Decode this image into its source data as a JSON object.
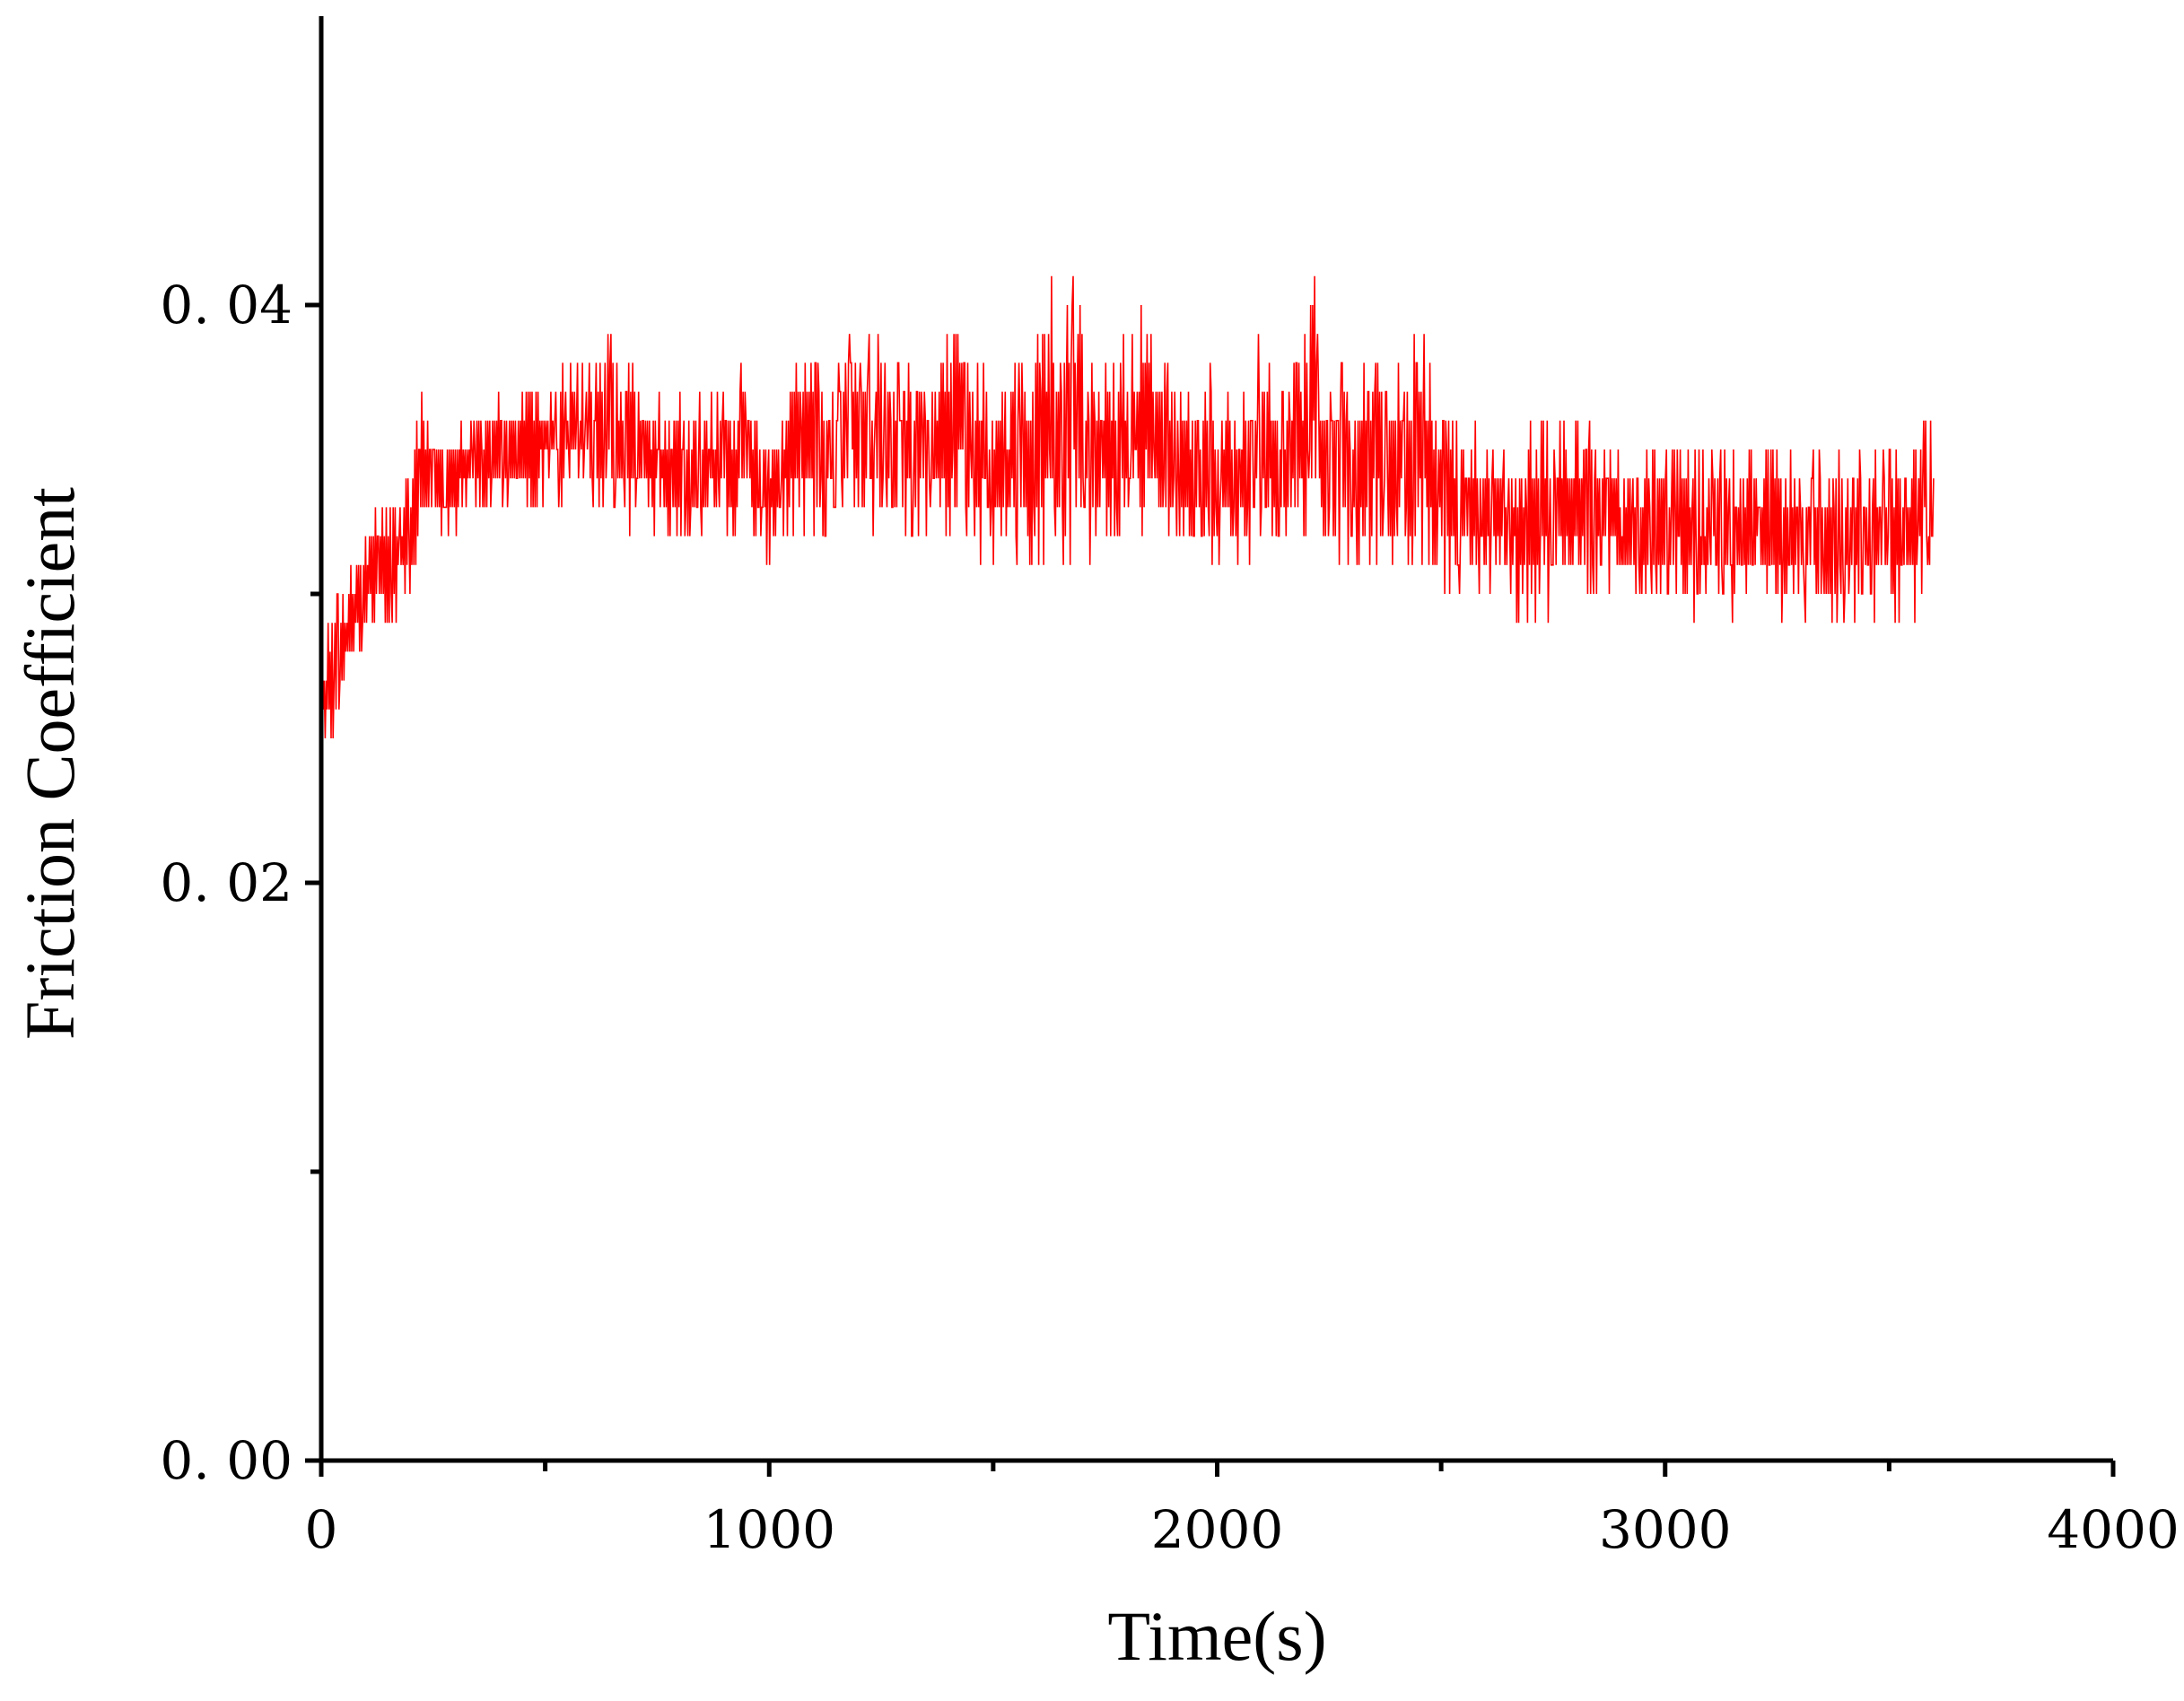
{
  "chart_data": {
    "type": "line",
    "title": "",
    "xlabel": "Time(s)",
    "ylabel": "Friction Coefficient",
    "xlim": [
      0,
      4000
    ],
    "ylim": [
      0,
      0.05
    ],
    "x_major_ticks": [
      0,
      1000,
      2000,
      3000,
      4000
    ],
    "x_tick_labels": [
      "0",
      "1000",
      "2000",
      "3000",
      "4000"
    ],
    "x_minor_ticks": [
      500,
      1500,
      2500,
      3500
    ],
    "y_major_ticks": [
      0,
      0.02,
      0.04
    ],
    "y_tick_labels": [
      "0. 00",
      "0. 02",
      "0. 04"
    ],
    "y_minor_ticks": [
      0.01,
      0.03
    ],
    "grid": false,
    "legend": "none",
    "line_color": "#ff0000",
    "series": [
      {
        "color": "#ff0000",
        "sampling_note": "",
        "x": [
          0,
          10,
          20,
          30,
          40,
          50,
          60,
          70,
          80,
          90,
          100,
          120,
          140,
          160,
          180,
          200,
          220,
          240,
          260,
          280,
          300,
          350,
          400,
          450,
          500,
          550,
          600,
          650,
          700,
          750,
          800,
          850,
          900,
          950,
          1000,
          1050,
          1100,
          1150,
          1200,
          1250,
          1300,
          1350,
          1400,
          1420,
          1440,
          1460,
          1500,
          1550,
          1600,
          1630,
          1650,
          1680,
          1700,
          1750,
          1800,
          1830,
          1850,
          1880,
          1900,
          1950,
          2000,
          2050,
          2100,
          2150,
          2180,
          2200,
          2210,
          2220,
          2230,
          2250,
          2300,
          2350,
          2400,
          2450,
          2500,
          2550,
          2600,
          2650,
          2680,
          2700,
          2750,
          2800,
          2850,
          2900,
          2950,
          3000,
          3050,
          3100,
          3150,
          3200,
          3250,
          3300,
          3350,
          3400,
          3450,
          3500,
          3550,
          3580,
          3600
        ],
        "y": [
          0.026,
          0.025,
          0.027,
          0.028,
          0.0265,
          0.029,
          0.028,
          0.03,
          0.029,
          0.031,
          0.03,
          0.032,
          0.031,
          0.033,
          0.032,
          0.034,
          0.033,
          0.035,
          0.034,
          0.035,
          0.0345,
          0.035,
          0.035,
          0.0355,
          0.035,
          0.0355,
          0.035,
          0.036,
          0.035,
          0.0345,
          0.035,
          0.035,
          0.0345,
          0.035,
          0.0345,
          0.035,
          0.036,
          0.035,
          0.0355,
          0.036,
          0.035,
          0.0355,
          0.036,
          0.038,
          0.037,
          0.036,
          0.0345,
          0.035,
          0.036,
          0.038,
          0.036,
          0.0375,
          0.036,
          0.035,
          0.036,
          0.038,
          0.036,
          0.035,
          0.035,
          0.034,
          0.0345,
          0.034,
          0.035,
          0.0345,
          0.036,
          0.038,
          0.042,
          0.039,
          0.036,
          0.035,
          0.035,
          0.0345,
          0.0345,
          0.035,
          0.034,
          0.034,
          0.0335,
          0.033,
          0.032,
          0.033,
          0.034,
          0.0335,
          0.033,
          0.033,
          0.032,
          0.0325,
          0.033,
          0.0325,
          0.032,
          0.0325,
          0.032,
          0.0325,
          0.032,
          0.0325,
          0.032,
          0.0325,
          0.032,
          0.033,
          0.0325
        ],
        "band_low": [
          0.024,
          0.025,
          0.025,
          0.025,
          0.026,
          0.026,
          0.027,
          0.027,
          0.028,
          0.028,
          0.028,
          0.029,
          0.029,
          0.029,
          0.029,
          0.03,
          0.031,
          0.032,
          0.032,
          0.032,
          0.032,
          0.033,
          0.033,
          0.033,
          0.033,
          0.033,
          0.033,
          0.033,
          0.032,
          0.032,
          0.031,
          0.032,
          0.032,
          0.032,
          0.031,
          0.032,
          0.032,
          0.032,
          0.032,
          0.032,
          0.032,
          0.032,
          0.032,
          0.032,
          0.032,
          0.031,
          0.031,
          0.031,
          0.031,
          0.031,
          0.031,
          0.031,
          0.031,
          0.031,
          0.032,
          0.032,
          0.032,
          0.032,
          0.032,
          0.031,
          0.031,
          0.031,
          0.031,
          0.031,
          0.031,
          0.031,
          0.032,
          0.032,
          0.031,
          0.031,
          0.03,
          0.031,
          0.031,
          0.031,
          0.03,
          0.03,
          0.03,
          0.03,
          0.029,
          0.029,
          0.029,
          0.03,
          0.03,
          0.03,
          0.029,
          0.03,
          0.029,
          0.03,
          0.029,
          0.029,
          0.029,
          0.029,
          0.029,
          0.029,
          0.029,
          0.029,
          0.029,
          0.03,
          0.031
        ],
        "band_high": [
          0.027,
          0.028,
          0.029,
          0.03,
          0.03,
          0.03,
          0.031,
          0.031,
          0.032,
          0.032,
          0.032,
          0.033,
          0.033,
          0.034,
          0.034,
          0.034,
          0.037,
          0.036,
          0.036,
          0.036,
          0.036,
          0.036,
          0.037,
          0.037,
          0.038,
          0.038,
          0.038,
          0.039,
          0.038,
          0.037,
          0.037,
          0.037,
          0.037,
          0.038,
          0.036,
          0.038,
          0.039,
          0.038,
          0.039,
          0.039,
          0.038,
          0.038,
          0.039,
          0.041,
          0.041,
          0.039,
          0.037,
          0.038,
          0.039,
          0.042,
          0.04,
          0.042,
          0.039,
          0.038,
          0.039,
          0.041,
          0.04,
          0.038,
          0.038,
          0.037,
          0.038,
          0.037,
          0.039,
          0.037,
          0.039,
          0.04,
          0.045,
          0.042,
          0.039,
          0.039,
          0.038,
          0.039,
          0.038,
          0.04,
          0.037,
          0.036,
          0.036,
          0.035,
          0.035,
          0.036,
          0.037,
          0.036,
          0.036,
          0.035,
          0.035,
          0.035,
          0.036,
          0.035,
          0.035,
          0.036,
          0.035,
          0.035,
          0.035,
          0.035,
          0.035,
          0.036,
          0.035,
          0.037,
          0.036
        ]
      }
    ]
  }
}
